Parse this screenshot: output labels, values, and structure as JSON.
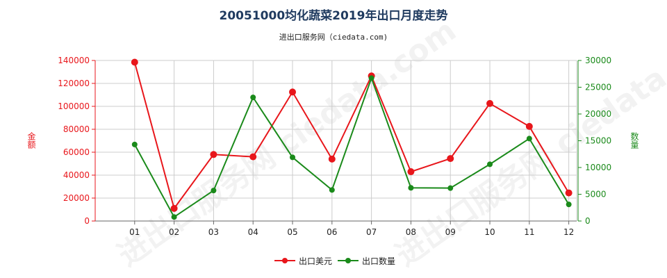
{
  "title": "20051000均化蔬菜2019年出口月度走势",
  "subtitle": "进出口服务网（ciedata.com)",
  "watermark": "进出口服务网 ciedata.com",
  "colors": {
    "export_value": "#e8161b",
    "export_qty": "#1a8a1a",
    "title": "#1f3a5f",
    "grid": "#cccccc"
  },
  "chart_data": {
    "type": "line",
    "categories": [
      "01",
      "02",
      "03",
      "04",
      "05",
      "06",
      "07",
      "08",
      "09",
      "10",
      "11",
      "12"
    ],
    "ylabel_left": "金额",
    "ylabel_right": "数量",
    "ylim_left": [
      0,
      140000
    ],
    "ylim_right": [
      0,
      30000
    ],
    "yticks_left": [
      "0",
      "20000",
      "40000",
      "60000",
      "80000",
      "100000",
      "120000",
      "140000"
    ],
    "yticks_right": [
      "0",
      "5000",
      "10000",
      "15000",
      "20000",
      "25000",
      "30000"
    ],
    "grid": true,
    "legend_position": "bottom",
    "series": [
      {
        "name": "出口美元",
        "axis": "left",
        "values": [
          138500,
          11000,
          58000,
          56000,
          112500,
          54000,
          126500,
          43000,
          54500,
          102500,
          82500,
          24500
        ]
      },
      {
        "name": "出口数量",
        "axis": "right",
        "values": [
          14300,
          750,
          5700,
          23100,
          11900,
          5800,
          26700,
          6200,
          6150,
          10600,
          15400,
          3100
        ]
      }
    ]
  }
}
